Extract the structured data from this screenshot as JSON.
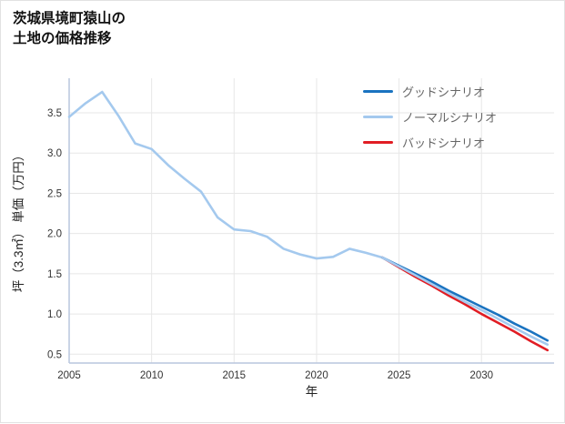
{
  "page": {
    "title_line1": "茨城県境町猿山の",
    "title_line2": "土地の価格推移"
  },
  "chart_data": {
    "type": "line",
    "title": "茨城県境町猿山の土地の価格推移",
    "xlabel": "年",
    "ylabel": "坪（3.3㎡） 単価（万円）",
    "xlim": [
      2005,
      2034.4
    ],
    "ylim": [
      0.39,
      3.93
    ],
    "xticks": [
      2005,
      2010,
      2015,
      2020,
      2025,
      2030
    ],
    "xtick_labels": [
      "2005",
      "2010",
      "2015",
      "2020",
      "2025",
      "2030"
    ],
    "yticks": [
      0.5,
      1.0,
      1.5,
      2.0,
      2.5,
      3.0,
      3.5
    ],
    "ytick_labels": [
      "0.5",
      "1.0",
      "1.5",
      "2.0",
      "2.5",
      "3.0",
      "3.5"
    ],
    "grid": true,
    "legend_position": "top-right",
    "legend": [
      {
        "key": "good",
        "label": "グッドシナリオ",
        "color": "#1a73c0"
      },
      {
        "key": "normal",
        "label": "ノーマルシナリオ",
        "color": "#a4c9ee"
      },
      {
        "key": "bad",
        "label": "バッドシナリオ",
        "color": "#e11d24"
      }
    ],
    "series": [
      {
        "key": "history",
        "color": "#a4c9ee",
        "width": 2.6,
        "x": [
          2005,
          2006,
          2007,
          2008,
          2009,
          2010,
          2011,
          2012,
          2013,
          2014,
          2015,
          2016,
          2017,
          2018,
          2019,
          2020,
          2021,
          2022,
          2023,
          2024
        ],
        "y": [
          3.45,
          3.62,
          3.76,
          3.46,
          3.12,
          3.05,
          2.85,
          2.68,
          2.52,
          2.2,
          2.05,
          2.03,
          1.96,
          1.81,
          1.74,
          1.69,
          1.71,
          1.81,
          1.76,
          1.7
        ]
      },
      {
        "key": "bad",
        "color": "#e11d24",
        "width": 2.6,
        "x": [
          2024,
          2025,
          2026,
          2027,
          2028,
          2029,
          2030,
          2031,
          2032,
          2033,
          2034
        ],
        "y": [
          1.7,
          1.58,
          1.46,
          1.35,
          1.23,
          1.12,
          1.0,
          0.89,
          0.78,
          0.66,
          0.55
        ]
      },
      {
        "key": "good",
        "color": "#1a73c0",
        "width": 2.6,
        "x": [
          2024,
          2025,
          2026,
          2027,
          2028,
          2029,
          2030,
          2031,
          2032,
          2033,
          2034
        ],
        "y": [
          1.7,
          1.6,
          1.5,
          1.4,
          1.29,
          1.19,
          1.09,
          0.99,
          0.88,
          0.78,
          0.67
        ]
      },
      {
        "key": "normal",
        "color": "#a4c9ee",
        "width": 2.6,
        "x": [
          2024,
          2025,
          2026,
          2027,
          2028,
          2029,
          2030,
          2031,
          2032,
          2033,
          2034
        ],
        "y": [
          1.7,
          1.59,
          1.48,
          1.37,
          1.26,
          1.15,
          1.05,
          0.94,
          0.83,
          0.72,
          0.62
        ]
      }
    ],
    "axis_color": "#b9c6de",
    "grid_color": "#e7e7e7",
    "tick_label_color": "#333333",
    "axis_label_color": "#222222"
  }
}
